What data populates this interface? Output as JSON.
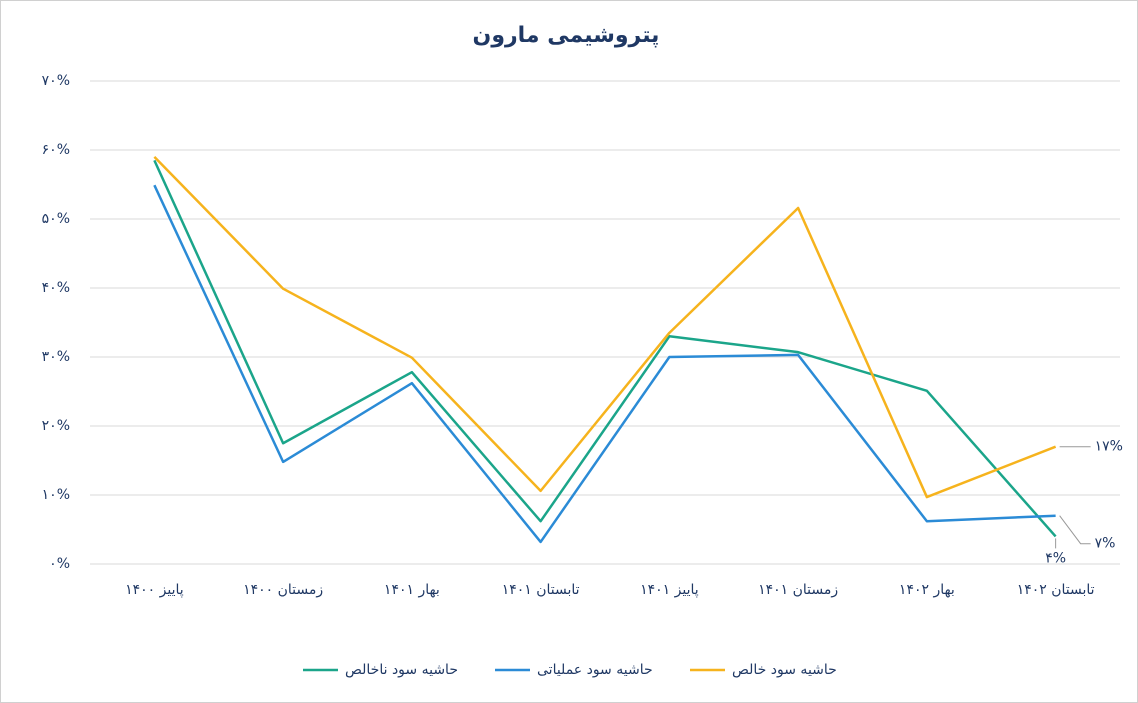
{
  "chart_data": {
    "type": "line",
    "title": "پتروشیمی مارون",
    "categories": [
      "پاییز ۱۴۰۰",
      "زمستان ۱۴۰۰",
      "بهار ۱۴۰۱",
      "تابستان ۱۴۰۱",
      "پاییز ۱۴۰۱",
      "زمستان ۱۴۰۱",
      "بهار ۱۴۰۲",
      "تابستان ۱۴۰۲"
    ],
    "series": [
      {
        "name": "حاشیه سود ناخالص",
        "color": "#1ba58a",
        "values": [
          58.5,
          17.5,
          27.8,
          6.2,
          33,
          30.7,
          25.1,
          4
        ],
        "value_labels": [
          null,
          null,
          null,
          null,
          null,
          null,
          null,
          "۴%"
        ]
      },
      {
        "name": "حاشیه سود عملیاتی",
        "color": "#2b8bd6",
        "values": [
          54.9,
          14.8,
          26.2,
          3.2,
          30,
          30.3,
          6.2,
          7
        ],
        "value_labels": [
          null,
          null,
          null,
          null,
          null,
          null,
          null,
          "۷%"
        ]
      },
      {
        "name": "حاشیه سود خالص",
        "color": "#f6b31d",
        "values": [
          59,
          39.9,
          29.9,
          10.6,
          33.5,
          51.6,
          9.7,
          17
        ],
        "value_labels": [
          null,
          null,
          null,
          null,
          null,
          null,
          null,
          "۱۷%"
        ]
      }
    ],
    "ylim": [
      0,
      70
    ],
    "yticks": [
      {
        "value": 0,
        "label": "۰%"
      },
      {
        "value": 10,
        "label": "۱۰%"
      },
      {
        "value": 20,
        "label": "۲۰%"
      },
      {
        "value": 30,
        "label": "۳۰%"
      },
      {
        "value": 40,
        "label": "۴۰%"
      },
      {
        "value": 50,
        "label": "۵۰%"
      },
      {
        "value": 60,
        "label": "۶۰%"
      },
      {
        "value": 70,
        "label": "۷۰%"
      }
    ],
    "grid": true,
    "legend": "bottom"
  }
}
